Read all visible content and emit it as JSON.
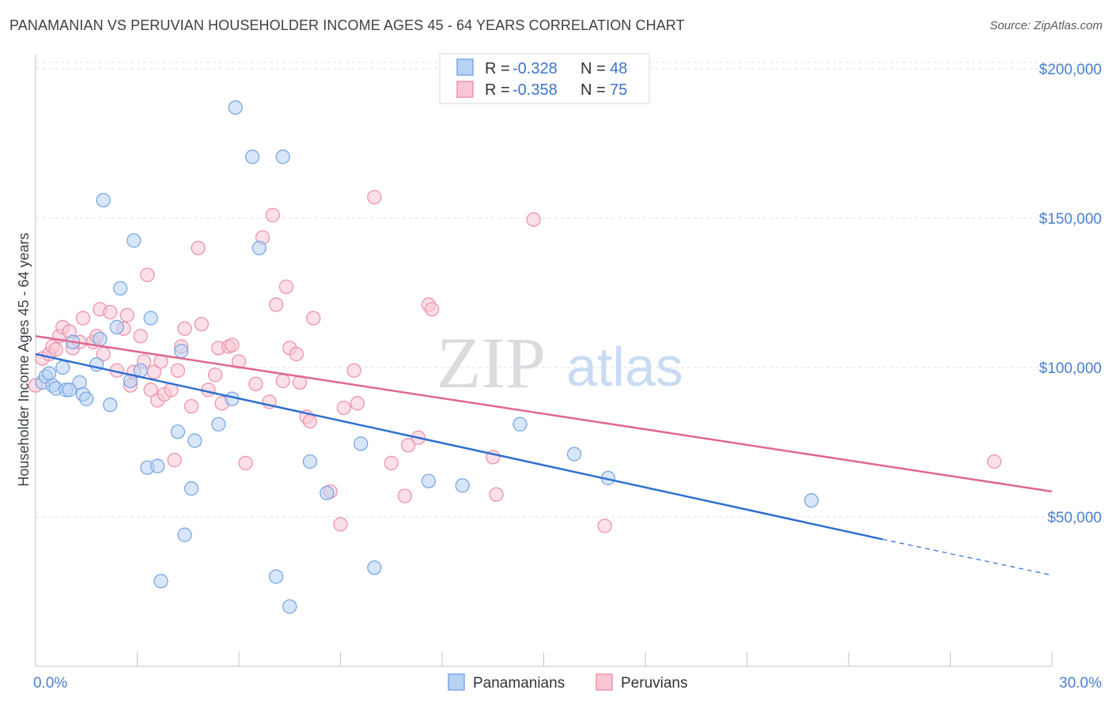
{
  "header": {
    "title": "PANAMANIAN VS PERUVIAN HOUSEHOLDER INCOME AGES 45 - 64 YEARS CORRELATION CHART",
    "source": "Source: ZipAtlas.com"
  },
  "watermark": {
    "zip": "ZIP",
    "atlas": "atlas"
  },
  "colors": {
    "panamanian_fill": "#b8d2f4",
    "panamanian_stroke": "#7aa8e6",
    "panamanian_line": "#2e6fd1",
    "peruvian_fill": "#f9c6d4",
    "peruvian_stroke": "#ee93ad",
    "peruvian_line": "#e06790",
    "tick_label": "#4a7fd0",
    "grid": "#dcdfe4"
  },
  "legend": {
    "r_label": "R = ",
    "n_label": "N = ",
    "entries": [
      {
        "r": "-0.328",
        "n": "48"
      },
      {
        "r": "-0.358",
        "n": "75"
      }
    ]
  },
  "chart_data": {
    "type": "scatter",
    "title": "PANAMANIAN VS PERUVIAN HOUSEHOLDER INCOME AGES 45 - 64 YEARS CORRELATION CHART",
    "xlabel": "",
    "ylabel": "Householder Income Ages 45 - 64 years",
    "xlim": [
      0,
      30
    ],
    "ylim": [
      0,
      205000
    ],
    "x_tick_labels": [
      "0.0%",
      "30.0%"
    ],
    "y_ticks": [
      50000,
      100000,
      150000,
      200000
    ],
    "y_tick_labels": [
      "$50,000",
      "$100,000",
      "$150,000",
      "$200,000"
    ],
    "grid": "horizontal dashed",
    "legend_placement": "top-center",
    "series": [
      {
        "name": "Panamanians",
        "r": -0.328,
        "n": 48,
        "trend": {
          "x": [
            0,
            25
          ],
          "y": [
            104500,
            42500
          ],
          "dashed_to": [
            30,
            30500
          ]
        },
        "points": [
          [
            0.2,
            95000
          ],
          [
            0.3,
            97000
          ],
          [
            0.4,
            98000
          ],
          [
            0.5,
            94000
          ],
          [
            0.6,
            93000
          ],
          [
            0.8,
            100000
          ],
          [
            0.9,
            92500
          ],
          [
            1.0,
            92500
          ],
          [
            1.1,
            108500
          ],
          [
            1.3,
            95000
          ],
          [
            1.4,
            91000
          ],
          [
            1.5,
            89500
          ],
          [
            1.8,
            101000
          ],
          [
            1.9,
            109500
          ],
          [
            2.0,
            156000
          ],
          [
            2.2,
            87500
          ],
          [
            2.4,
            113500
          ],
          [
            2.5,
            126500
          ],
          [
            2.8,
            95500
          ],
          [
            2.9,
            142500
          ],
          [
            3.1,
            99000
          ],
          [
            3.3,
            66500
          ],
          [
            3.4,
            116500
          ],
          [
            3.6,
            67000
          ],
          [
            3.7,
            28500
          ],
          [
            4.2,
            78500
          ],
          [
            4.3,
            105500
          ],
          [
            4.4,
            44000
          ],
          [
            4.6,
            59500
          ],
          [
            4.7,
            75500
          ],
          [
            5.4,
            81000
          ],
          [
            5.8,
            89500
          ],
          [
            5.9,
            187000
          ],
          [
            6.4,
            170500
          ],
          [
            6.6,
            140000
          ],
          [
            7.1,
            30000
          ],
          [
            7.3,
            170500
          ],
          [
            7.5,
            20000
          ],
          [
            8.1,
            68500
          ],
          [
            8.6,
            58000
          ],
          [
            9.6,
            74500
          ],
          [
            10.0,
            33000
          ],
          [
            11.6,
            62000
          ],
          [
            12.6,
            60500
          ],
          [
            14.3,
            81000
          ],
          [
            15.9,
            71000
          ],
          [
            16.9,
            63000
          ],
          [
            22.9,
            55500
          ]
        ]
      },
      {
        "name": "Peruvians",
        "r": -0.358,
        "n": 75,
        "trend": {
          "x": [
            0,
            30
          ],
          "y": [
            110500,
            58500
          ]
        },
        "points": [
          [
            0.0,
            94000
          ],
          [
            0.2,
            103000
          ],
          [
            0.4,
            104500
          ],
          [
            0.5,
            107000
          ],
          [
            0.6,
            106000
          ],
          [
            0.7,
            110500
          ],
          [
            0.8,
            113500
          ],
          [
            1.0,
            112000
          ],
          [
            1.1,
            106500
          ],
          [
            1.3,
            108500
          ],
          [
            1.4,
            116500
          ],
          [
            1.7,
            108500
          ],
          [
            1.8,
            110500
          ],
          [
            1.9,
            119500
          ],
          [
            2.0,
            104500
          ],
          [
            2.2,
            118500
          ],
          [
            2.4,
            99000
          ],
          [
            2.6,
            113000
          ],
          [
            2.7,
            117500
          ],
          [
            2.8,
            94000
          ],
          [
            2.9,
            98500
          ],
          [
            3.1,
            110500
          ],
          [
            3.2,
            102000
          ],
          [
            3.3,
            131000
          ],
          [
            3.4,
            92500
          ],
          [
            3.5,
            98500
          ],
          [
            3.6,
            89000
          ],
          [
            3.7,
            102000
          ],
          [
            3.8,
            91000
          ],
          [
            4.0,
            92500
          ],
          [
            4.1,
            69000
          ],
          [
            4.2,
            99000
          ],
          [
            4.3,
            107000
          ],
          [
            4.4,
            113000
          ],
          [
            4.6,
            87000
          ],
          [
            4.8,
            140000
          ],
          [
            4.9,
            114500
          ],
          [
            5.1,
            92500
          ],
          [
            5.3,
            97500
          ],
          [
            5.4,
            106500
          ],
          [
            5.5,
            88000
          ],
          [
            5.7,
            107000
          ],
          [
            5.8,
            107500
          ],
          [
            6.0,
            102000
          ],
          [
            6.2,
            68000
          ],
          [
            6.5,
            94500
          ],
          [
            6.7,
            143500
          ],
          [
            6.9,
            88500
          ],
          [
            7.0,
            151000
          ],
          [
            7.1,
            121000
          ],
          [
            7.3,
            95500
          ],
          [
            7.4,
            127000
          ],
          [
            7.5,
            106500
          ],
          [
            7.7,
            104500
          ],
          [
            7.8,
            95000
          ],
          [
            8.0,
            83500
          ],
          [
            8.1,
            82000
          ],
          [
            8.2,
            116500
          ],
          [
            8.7,
            58500
          ],
          [
            9.0,
            47500
          ],
          [
            9.1,
            86500
          ],
          [
            9.4,
            99000
          ],
          [
            9.5,
            88000
          ],
          [
            10.0,
            157000
          ],
          [
            10.5,
            68000
          ],
          [
            10.9,
            57000
          ],
          [
            11.0,
            74000
          ],
          [
            11.3,
            76500
          ],
          [
            11.6,
            121000
          ],
          [
            11.7,
            119500
          ],
          [
            13.5,
            70000
          ],
          [
            13.6,
            57500
          ],
          [
            14.7,
            149500
          ],
          [
            16.8,
            47000
          ],
          [
            28.3,
            68500
          ]
        ]
      }
    ]
  }
}
